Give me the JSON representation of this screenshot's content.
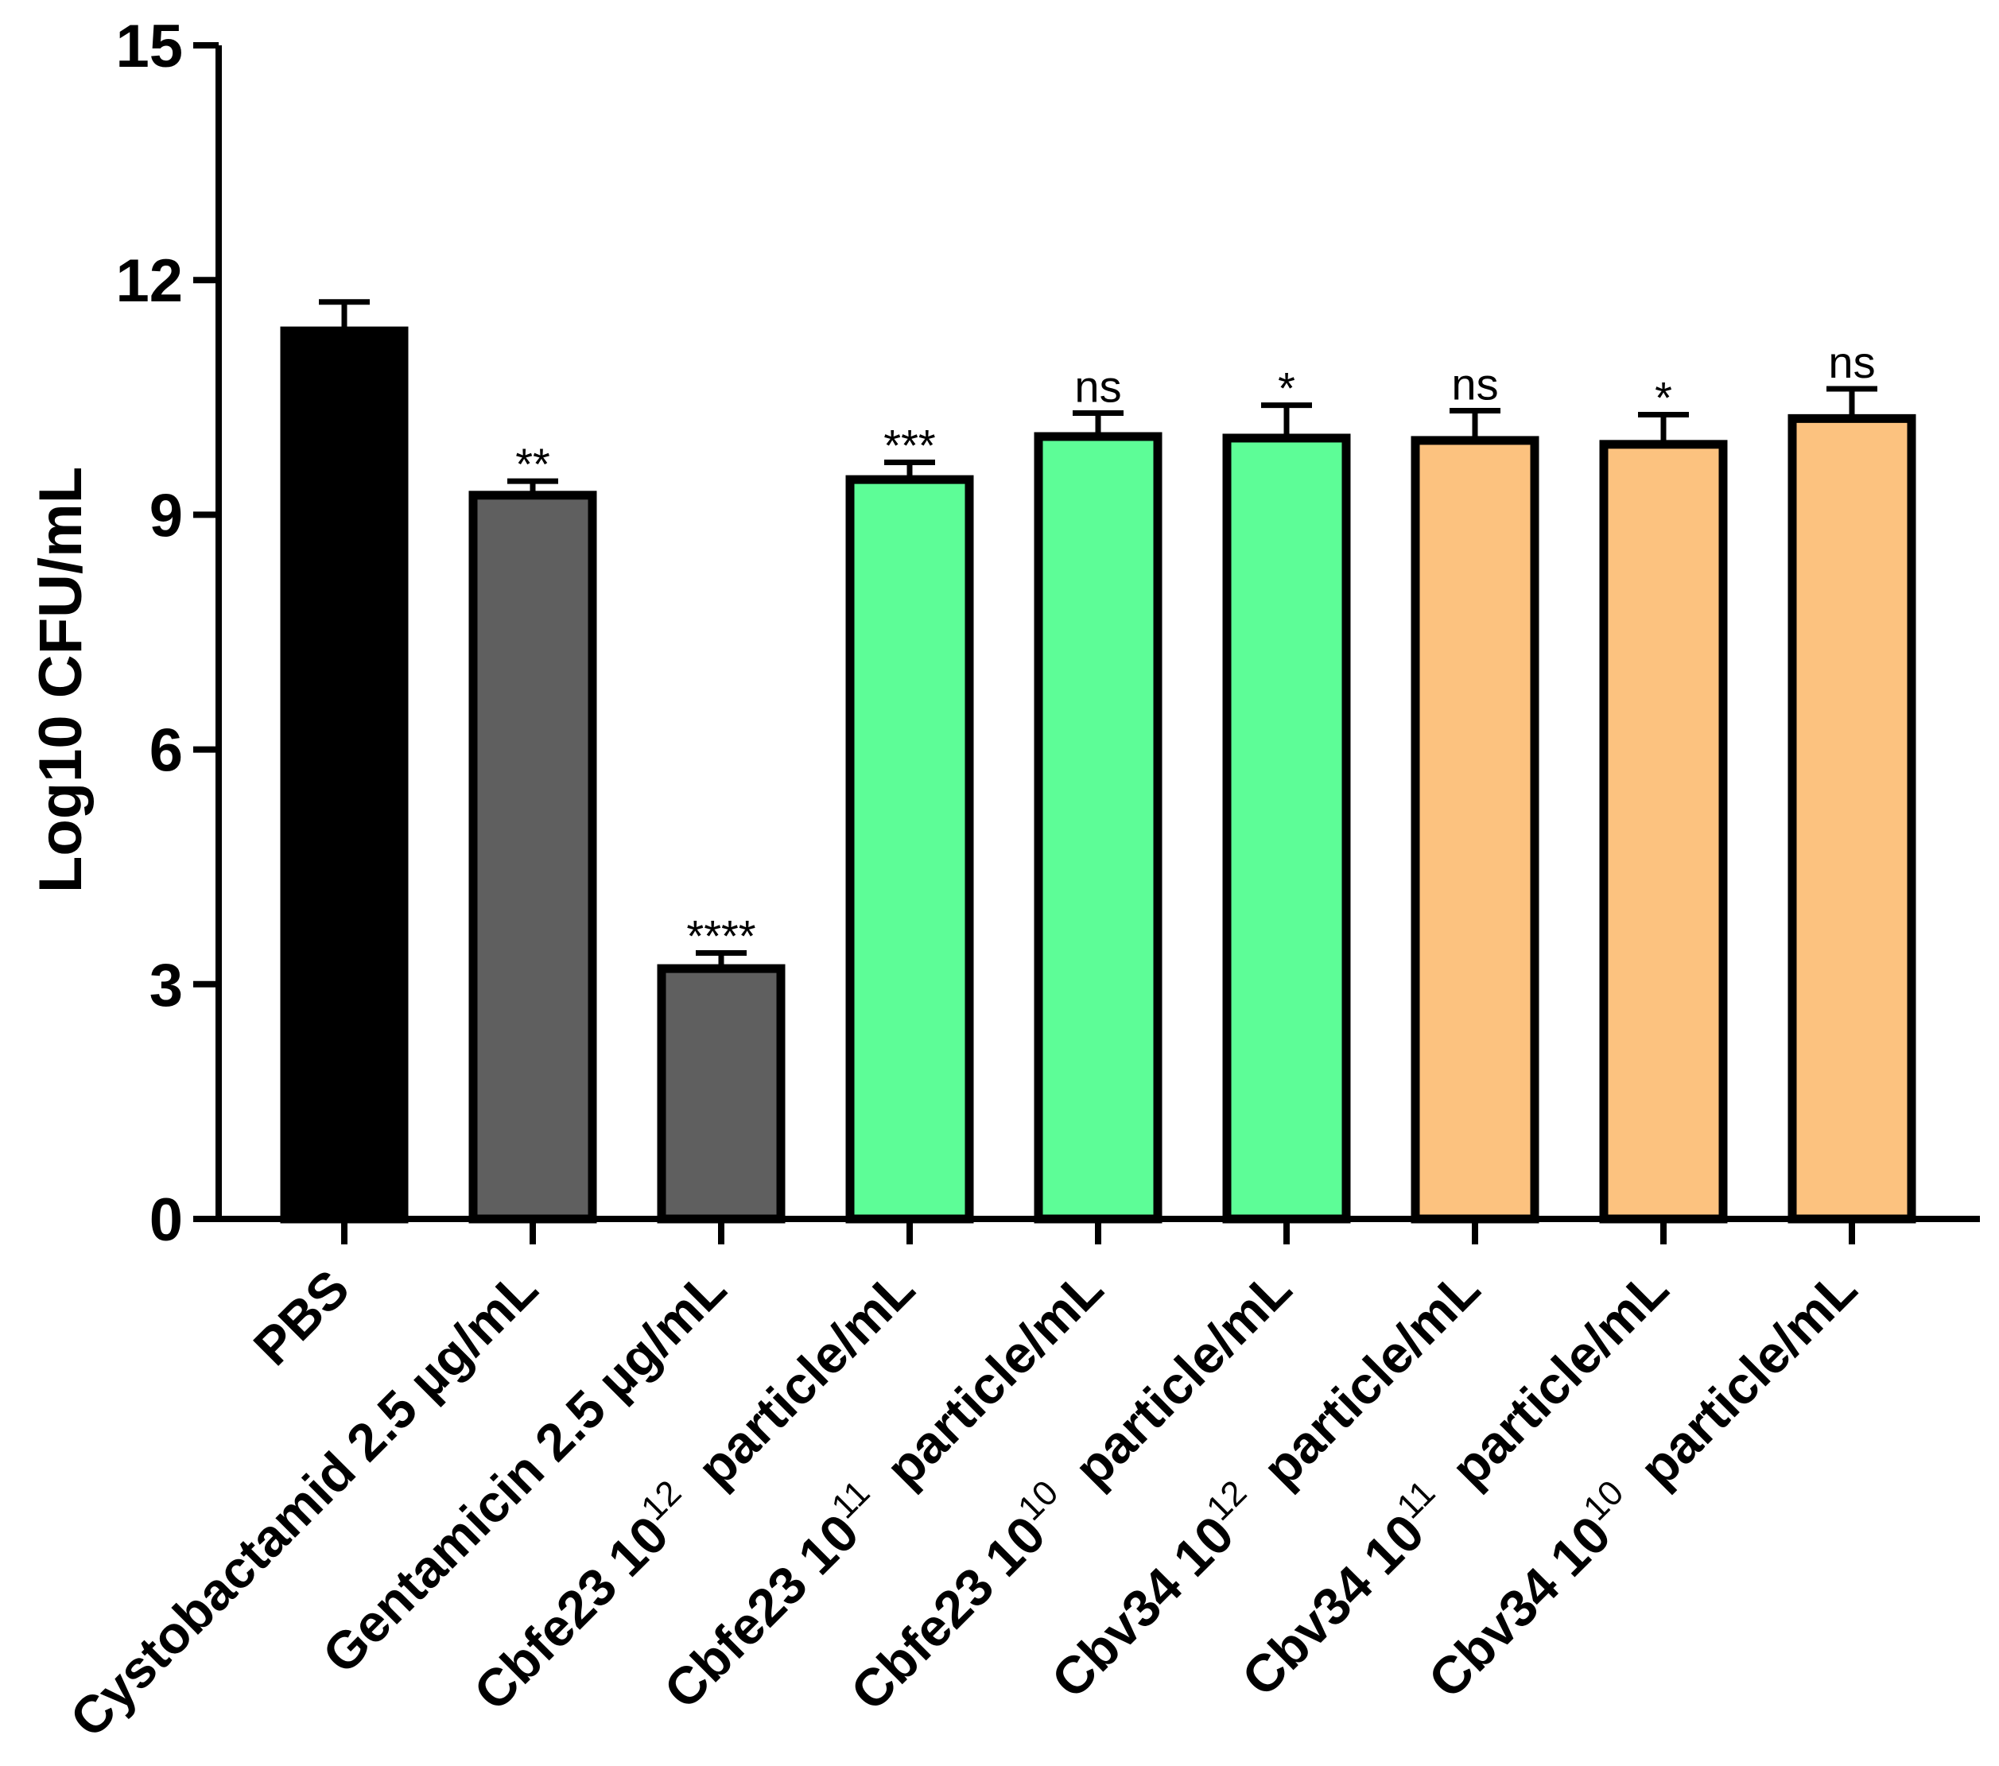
{
  "chart_data": {
    "type": "bar",
    "title": "",
    "xlabel": "",
    "ylabel": "Log10 CFU/mL",
    "ylim": [
      0,
      15
    ],
    "yticks": [
      0,
      3,
      6,
      9,
      12,
      15
    ],
    "grid": false,
    "categories": [
      {
        "name": "PBS",
        "base": "PBS",
        "exp": "",
        "tail": ""
      },
      {
        "name": "Cystobactamid 2.5 µg/mL",
        "base": "Cystobactamid 2.5 µg/mL",
        "exp": "",
        "tail": ""
      },
      {
        "name": "Gentamicin 2.5 µg/mL",
        "base": "Gentamicin 2.5 µg/mL",
        "exp": "",
        "tail": ""
      },
      {
        "name": "Cbfe23 10^12 particle/mL",
        "base": "Cbfe23 10",
        "exp": "12",
        "tail": " particle/mL"
      },
      {
        "name": "Cbfe23 10^11 particle/mL",
        "base": "Cbfe23 10",
        "exp": "11",
        "tail": " particle/mL"
      },
      {
        "name": "Cbfe23 10^10 particle/mL",
        "base": "Cbfe23 10",
        "exp": "10",
        "tail": " particle/mL"
      },
      {
        "name": "Cbv34 10^12 particle/mL",
        "base": "Cbv34 10",
        "exp": "12",
        "tail": " particle/mL"
      },
      {
        "name": "Cbv34 10^11 particle/mL",
        "base": "Cbv34 10",
        "exp": "11",
        "tail": " particle/mL"
      },
      {
        "name": "Cbv34 10^10 particle/mL",
        "base": "Cbv34 10",
        "exp": "10",
        "tail": " particle/mL"
      }
    ],
    "values": [
      11.35,
      9.25,
      3.2,
      9.45,
      10.0,
      9.98,
      9.95,
      9.9,
      10.23
    ],
    "errors": [
      0.37,
      0.18,
      0.2,
      0.22,
      0.3,
      0.42,
      0.38,
      0.38,
      0.38
    ],
    "significance": [
      "",
      "**",
      "****",
      "***",
      "ns",
      "*",
      "ns",
      "*",
      "ns"
    ],
    "colors": [
      "#000000",
      "#5f5f5f",
      "#5f5f5f",
      "#5dfd97",
      "#5dfd97",
      "#5dfd97",
      "#fcc27f",
      "#fcc27f",
      "#fcc27f"
    ]
  }
}
